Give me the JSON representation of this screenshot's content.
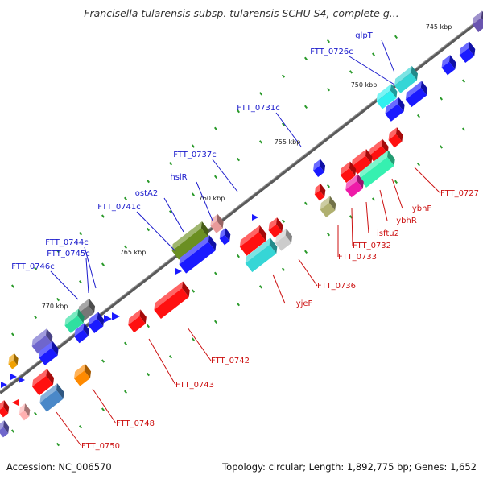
{
  "title": "Francisella tularensis subsp. tularensis SCHU S4, complete g...",
  "footer": {
    "accession": "Accession: NC_006570",
    "topology": "Topology: circular; Length: 1,892,775 bp; Genes: 1,652"
  },
  "ticks": [
    "745 kbp",
    "750 kbp",
    "755 kbp",
    "760 kbp",
    "765 kbp",
    "770 kbp"
  ],
  "genes_forward": [
    "glpT",
    "FTT_0726c",
    "FTT_0731c",
    "FTT_0737c",
    "hslR",
    "ostA2",
    "FTT_0741c",
    "FTT_0744c",
    "FTT_0745c",
    "FTT_0746c"
  ],
  "genes_reverse": [
    "FTT_0727",
    "ybhF",
    "ybhR",
    "isftu2",
    "FTT_0732",
    "FTT_0733",
    "FTT_0736",
    "yjeF",
    "FTT_0742",
    "FTT_0743",
    "FTT_0748",
    "FTT_0750"
  ],
  "colors": {
    "forward_label": "#1a1acc",
    "reverse_label": "#cc1111",
    "axis": "#666666",
    "tick_dot": "#2a9a2a"
  }
}
